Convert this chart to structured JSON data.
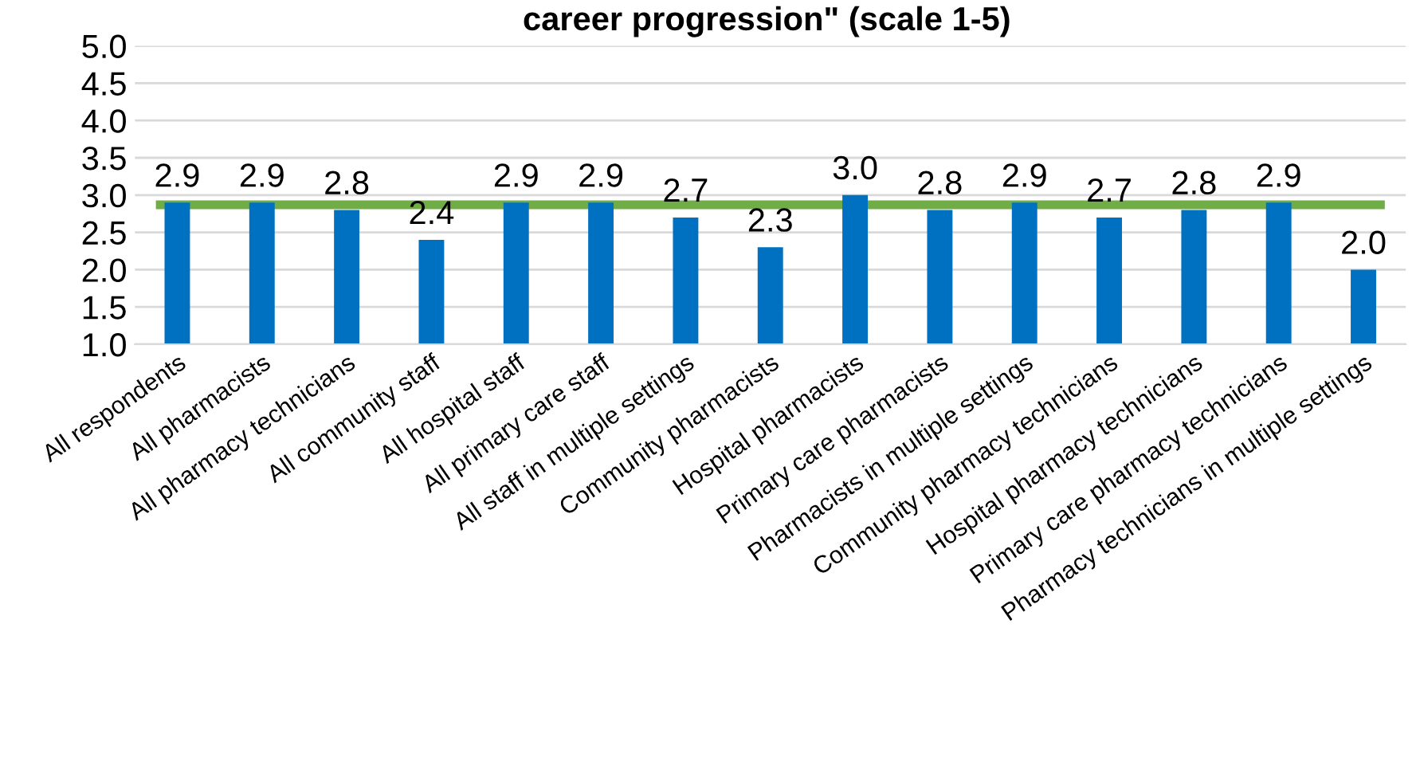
{
  "chart_data": {
    "type": "bar",
    "title": "career progression\" (scale 1-5)",
    "categories": [
      "All respondents",
      "All pharmacists",
      "All pharmacy technicians",
      "All community staff",
      "All hospital staff",
      "All primary care staff",
      "All staff in multiple settings",
      "Community pharmacists",
      "Hospital pharmacists",
      "Primary care pharmacists",
      "Pharmacists in multiple settings",
      "Community pharmacy technicians",
      "Hospital pharmacy technicians",
      "Primary care pharmacy technicians",
      "Pharmacy technicians in multiple settings"
    ],
    "values": [
      2.9,
      2.9,
      2.8,
      2.4,
      2.9,
      2.9,
      2.7,
      2.3,
      3.0,
      2.8,
      2.9,
      2.7,
      2.8,
      2.9,
      2.0
    ],
    "color": "#0070c0",
    "value_labels": [
      "2.9",
      "2.9",
      "2.8",
      "2.4",
      "2.9",
      "2.9",
      "2.7",
      "2.3",
      "3.0",
      "2.8",
      "2.9",
      "2.7",
      "2.8",
      "2.9",
      "2.0"
    ],
    "ylim": [
      1.0,
      5.0
    ],
    "yticks": [
      {
        "value": 1.0,
        "label": "1.0"
      },
      {
        "value": 1.5,
        "label": "1.5"
      },
      {
        "value": 2.0,
        "label": "2.0"
      },
      {
        "value": 2.5,
        "label": "2.5"
      },
      {
        "value": 3.0,
        "label": "3.0"
      },
      {
        "value": 3.5,
        "label": "3.5"
      },
      {
        "value": 4.0,
        "label": "4.0"
      },
      {
        "value": 4.5,
        "label": "4.5"
      },
      {
        "value": 5.0,
        "label": "5.0"
      }
    ],
    "grid": "y",
    "legend": false,
    "ref_lines": [
      {
        "axis": "y",
        "value": 2.87,
        "color": "#70ad47"
      }
    ]
  }
}
